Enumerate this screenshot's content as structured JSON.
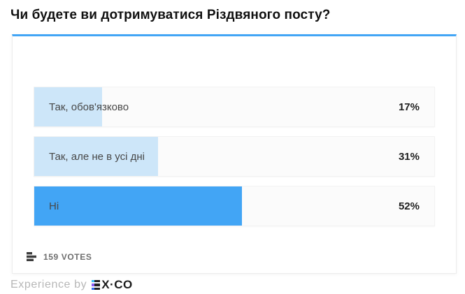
{
  "poll": {
    "question": "Чи будете ви дотримуватися Різдвяного посту?",
    "options": [
      {
        "label": "Так, обов'язково",
        "percent": 17,
        "percent_label": "17%",
        "fill_color": "#cde6f9",
        "leading": false
      },
      {
        "label": "Так, але не в усі дні",
        "percent": 31,
        "percent_label": "31%",
        "fill_color": "#cde6f9",
        "leading": false
      },
      {
        "label": "Ні",
        "percent": 52,
        "percent_label": "52%",
        "fill_color": "#42a5f5",
        "leading": true
      }
    ],
    "votes_count": 159,
    "votes_label": "159 VOTES"
  },
  "footer": {
    "experience_text": "Experience by",
    "logo_text": "X·CO",
    "logo_full_name": "EX·CO"
  },
  "colors": {
    "accent_blue": "#42a5f5",
    "bar_light_blue": "#cde6f9",
    "votes_icon_gray": "#3d3d3d",
    "logo_bar_top": "#38bdf2",
    "logo_bar_middle": "#8b5cf6",
    "logo_bar_bottom": "#2f6bf0"
  },
  "chart_data": {
    "type": "bar",
    "orientation": "horizontal",
    "title": "Чи будете ви дотримуватися Різдвяного посту?",
    "categories": [
      "Так, обов'язково",
      "Так, але не в усі дні",
      "Ні"
    ],
    "values": [
      17,
      31,
      52
    ],
    "unit": "%",
    "value_range": [
      0,
      100
    ],
    "total_votes": 159,
    "legend": "none",
    "grid": false
  }
}
